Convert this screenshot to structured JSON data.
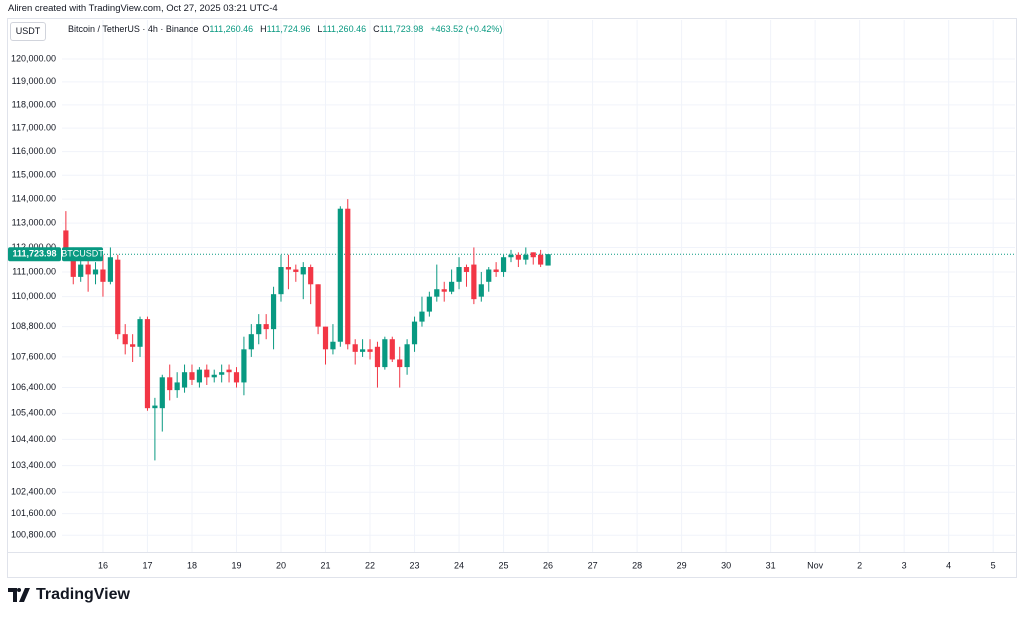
{
  "header": {
    "credit": "Aliren created with TradingView.com, Oct 27, 2025 03:21 UTC-4",
    "logo": "TradingView"
  },
  "chart_data": {
    "type": "candlestick",
    "currency": "USDT",
    "symbol": "Bitcoin / TetherUS · 4h · Binance",
    "ohlc": [
      {
        "key": "O",
        "text": "111,260.46"
      },
      {
        "key": "H",
        "text": "111,724.96"
      },
      {
        "key": "L",
        "text": "111,260.46"
      },
      {
        "key": "C",
        "text": "111,723.98"
      }
    ],
    "change": "+463.52 (+0.42%)",
    "last_price": {
      "value": 111723.98,
      "label": "111,723.98",
      "ticker": "BTCUSDT"
    },
    "up_color": "#089981",
    "down_color": "#f23645",
    "log_scale": true,
    "grid": true,
    "x": [
      15.167,
      15.333,
      15.5,
      15.667,
      15.833,
      16,
      16.167,
      16.333,
      16.5,
      16.667,
      16.833,
      17,
      17.167,
      17.333,
      17.5,
      17.667,
      17.833,
      18,
      18.167,
      18.333,
      18.5,
      18.667,
      18.833,
      19,
      19.167,
      19.333,
      19.5,
      19.667,
      19.833,
      20,
      20.167,
      20.333,
      20.5,
      20.667,
      20.833,
      21,
      21.167,
      21.333,
      21.5,
      21.667,
      21.833,
      22,
      22.167,
      22.333,
      22.5,
      22.667,
      22.833,
      23,
      23.167,
      23.333,
      23.5,
      23.667,
      23.833,
      24,
      24.167,
      24.333,
      24.5,
      24.667,
      24.833,
      25,
      25.167,
      25.333,
      25.5,
      25.667,
      25.833,
      26
    ],
    "open": [
      112700,
      111900,
      110800,
      111300,
      110900,
      111100,
      110600,
      111500,
      108500,
      108100,
      108000,
      109100,
      105600,
      105600,
      106800,
      106300,
      106400,
      107000,
      106600,
      107100,
      106800,
      106900,
      107100,
      107000,
      106600,
      107900,
      108500,
      108900,
      108700,
      110100,
      111200,
      111100,
      110900,
      111200,
      110500,
      108800,
      107900,
      108200,
      113600,
      108100,
      107800,
      107900,
      108000,
      107200,
      108300,
      107500,
      107200,
      108100,
      109000,
      109400,
      110000,
      110300,
      110200,
      110600,
      111200,
      111300,
      110000,
      110600,
      111100,
      111000,
      111600,
      111700,
      111500,
      111800,
      111700,
      111260.46
    ],
    "high": [
      113500,
      112000,
      111500,
      111700,
      111400,
      111700,
      112000,
      111700,
      108900,
      108500,
      109200,
      109200,
      106000,
      106900,
      107300,
      107000,
      107300,
      107300,
      107200,
      107300,
      107100,
      107300,
      107300,
      107200,
      108400,
      108900,
      109300,
      109300,
      110400,
      111700,
      111700,
      111300,
      111400,
      111300,
      110500,
      108800,
      108900,
      113700,
      114000,
      108300,
      108300,
      108300,
      108200,
      108400,
      108400,
      108000,
      108300,
      109200,
      110000,
      110200,
      111300,
      110600,
      111100,
      111600,
      111300,
      112000,
      111000,
      111200,
      111400,
      111700,
      111900,
      111800,
      112000,
      111800,
      111900,
      111724.96
    ],
    "low": [
      111800,
      110500,
      110600,
      110200,
      110500,
      110000,
      110500,
      108300,
      107700,
      107400,
      107600,
      105500,
      103600,
      104700,
      105900,
      106000,
      106200,
      106500,
      106400,
      106500,
      106600,
      106600,
      106600,
      106400,
      106100,
      107600,
      108100,
      108300,
      107900,
      109800,
      110300,
      110600,
      109900,
      109700,
      108500,
      107300,
      107700,
      108000,
      107900,
      107300,
      107600,
      107500,
      106400,
      107100,
      107400,
      106400,
      106900,
      107800,
      108800,
      109200,
      109800,
      109800,
      110100,
      110300,
      110400,
      109700,
      109800,
      110200,
      110800,
      110800,
      111400,
      111200,
      111300,
      111300,
      111200,
      111260.46
    ],
    "close": [
      111900,
      110800,
      111300,
      110900,
      111100,
      110600,
      111600,
      108500,
      108100,
      108000,
      109100,
      105600,
      105700,
      106800,
      106300,
      106600,
      107000,
      106700,
      107100,
      106800,
      106900,
      107000,
      107000,
      106600,
      107900,
      108500,
      108900,
      108700,
      110100,
      111200,
      111100,
      111000,
      111200,
      110500,
      108800,
      107900,
      108200,
      113600,
      108100,
      107800,
      107900,
      107800,
      107200,
      108300,
      107500,
      107200,
      108100,
      109000,
      109400,
      110000,
      110300,
      110200,
      110600,
      111200,
      111000,
      109900,
      110500,
      111100,
      111000,
      111600,
      111700,
      111500,
      111700,
      111600,
      111300,
      111723.98
    ],
    "xlim": [
      15.08,
      36.49
    ],
    "xticks": [
      16,
      17,
      18,
      19,
      20,
      21,
      22,
      23,
      24,
      25,
      26,
      27,
      28,
      29,
      30,
      31,
      {
        "value": 32,
        "label": "Nov"
      },
      {
        "value": 33,
        "label": "2"
      },
      {
        "value": 34,
        "label": "3"
      },
      {
        "value": 35,
        "label": "4"
      },
      {
        "value": 36,
        "label": "5"
      }
    ],
    "ylim": [
      100330,
      120617
    ],
    "yticks": [
      {
        "value": 120000,
        "label": "120,000.00"
      },
      {
        "value": 119000,
        "label": "119,000.00"
      },
      {
        "value": 118000,
        "label": "118,000.00"
      },
      {
        "value": 117000,
        "label": "117,000.00"
      },
      {
        "value": 116000,
        "label": "116,000.00"
      },
      {
        "value": 115000,
        "label": "115,000.00"
      },
      {
        "value": 114000,
        "label": "114,000.00"
      },
      {
        "value": 113000,
        "label": "113,000.00"
      },
      {
        "value": 112000,
        "label": "112,000.00"
      },
      {
        "value": 111000,
        "label": "111,000.00"
      },
      {
        "value": 110000,
        "label": "110,000.00"
      },
      {
        "value": 108800,
        "label": "108,800.00"
      },
      {
        "value": 107600,
        "label": "107,600.00"
      },
      {
        "value": 106400,
        "label": "106,400.00"
      },
      {
        "value": 105400,
        "label": "105,400.00"
      },
      {
        "value": 104400,
        "label": "104,400.00"
      },
      {
        "value": 103400,
        "label": "103,400.00"
      },
      {
        "value": 102400,
        "label": "102,400.00"
      },
      {
        "value": 101600,
        "label": "101,600.00"
      },
      {
        "value": 100800,
        "label": "100,800.00"
      }
    ]
  }
}
